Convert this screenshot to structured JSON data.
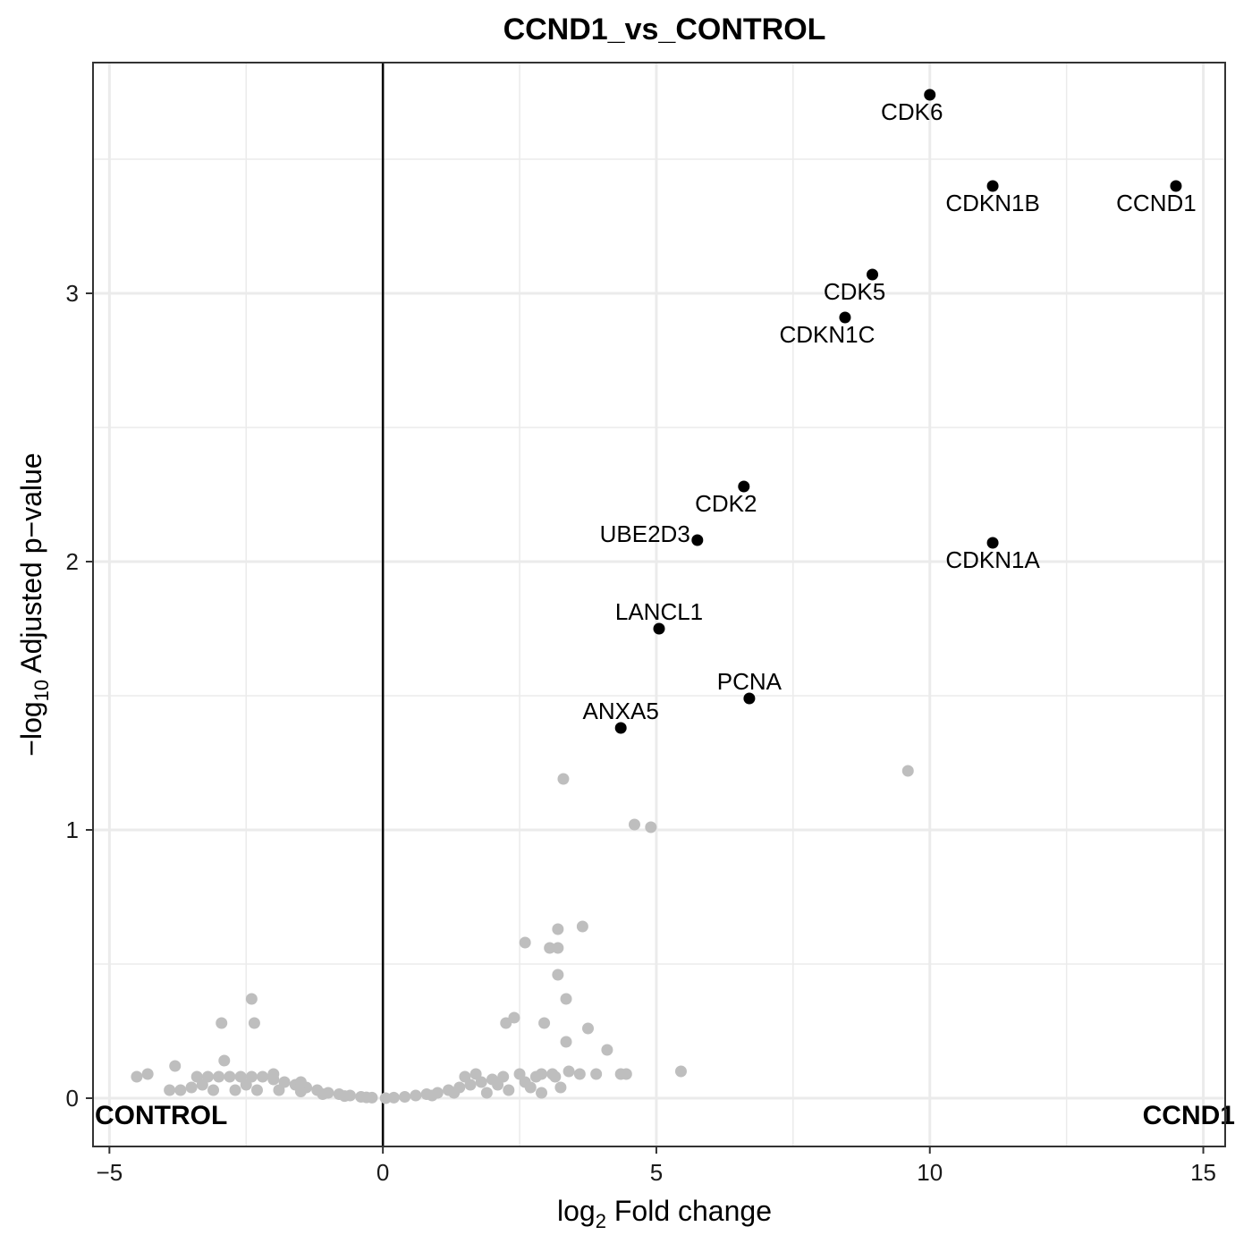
{
  "chart_data": {
    "type": "scatter",
    "title": "CCND1_vs_CONTROL",
    "xlabel": "log2 Fold change",
    "xlabel_parts": {
      "prefix": "log",
      "sub": "2",
      "suffix": " Fold change"
    },
    "ylabel": "−log10 Adjusted p−value",
    "ylabel_parts": {
      "prefix": "−log",
      "sub": "10",
      "suffix": " Adjusted p−value"
    },
    "xlim": [
      -5.3,
      15.4
    ],
    "ylim": [
      -0.18,
      3.86
    ],
    "x_ticks": [
      -5,
      0,
      5,
      10,
      15
    ],
    "x_tick_labels": [
      "−5",
      "0",
      "5",
      "10",
      "15"
    ],
    "y_ticks": [
      0,
      1,
      2,
      3
    ],
    "y_tick_labels": [
      "0",
      "1",
      "2",
      "3"
    ],
    "x_minor_ticks": [
      -2.5,
      2.5,
      7.5,
      12.5
    ],
    "y_minor_ticks": [
      0.5,
      1.5,
      2.5,
      3.5
    ],
    "grid": true,
    "vline_x": 0,
    "corner_labels": {
      "left": "CONTROL",
      "right": "CCND1"
    },
    "colors": {
      "significant": "#000000",
      "nonsignificant": "#bebebe",
      "grid": "#ebebeb",
      "panel_border": "#333333"
    },
    "significant_points": [
      {
        "gene": "CDK6",
        "x": 10.0,
        "y": 3.74
      },
      {
        "gene": "CDKN1B",
        "x": 11.15,
        "y": 3.4
      },
      {
        "gene": "CCND1",
        "x": 14.5,
        "y": 3.4
      },
      {
        "gene": "CDK5",
        "x": 8.95,
        "y": 3.07
      },
      {
        "gene": "CDKN1C",
        "x": 8.45,
        "y": 2.91
      },
      {
        "gene": "CDK2",
        "x": 6.6,
        "y": 2.28
      },
      {
        "gene": "UBE2D3",
        "x": 5.75,
        "y": 2.08
      },
      {
        "gene": "CDKN1A",
        "x": 11.15,
        "y": 2.07
      },
      {
        "gene": "LANCL1",
        "x": 5.05,
        "y": 1.75
      },
      {
        "gene": "PCNA",
        "x": 6.7,
        "y": 1.49
      },
      {
        "gene": "ANXA5",
        "x": 4.35,
        "y": 1.38
      }
    ],
    "background_points": [
      {
        "x": 3.3,
        "y": 1.19
      },
      {
        "x": 9.6,
        "y": 1.22
      },
      {
        "x": 4.6,
        "y": 1.02
      },
      {
        "x": 4.9,
        "y": 1.01
      },
      {
        "x": 3.2,
        "y": 0.63
      },
      {
        "x": 3.65,
        "y": 0.64
      },
      {
        "x": 2.6,
        "y": 0.58
      },
      {
        "x": 3.05,
        "y": 0.56
      },
      {
        "x": 3.2,
        "y": 0.56
      },
      {
        "x": 3.2,
        "y": 0.46
      },
      {
        "x": 3.35,
        "y": 0.37
      },
      {
        "x": 2.4,
        "y": 0.3
      },
      {
        "x": 2.25,
        "y": 0.28
      },
      {
        "x": 2.95,
        "y": 0.28
      },
      {
        "x": 3.75,
        "y": 0.26
      },
      {
        "x": 3.35,
        "y": 0.21
      },
      {
        "x": 4.1,
        "y": 0.18
      },
      {
        "x": -2.4,
        "y": 0.37
      },
      {
        "x": -2.35,
        "y": 0.28
      },
      {
        "x": -2.95,
        "y": 0.28
      },
      {
        "x": -2.9,
        "y": 0.14
      },
      {
        "x": -3.8,
        "y": 0.12
      },
      {
        "x": -4.3,
        "y": 0.09
      },
      {
        "x": -4.5,
        "y": 0.08
      },
      {
        "x": 5.45,
        "y": 0.1
      },
      {
        "x": 4.35,
        "y": 0.09
      },
      {
        "x": 4.45,
        "y": 0.09
      },
      {
        "x": 3.4,
        "y": 0.1
      },
      {
        "x": 3.6,
        "y": 0.09
      },
      {
        "x": 3.9,
        "y": 0.09
      },
      {
        "x": 3.15,
        "y": 0.08
      },
      {
        "x": 3.25,
        "y": 0.04
      },
      {
        "x": 2.8,
        "y": 0.08
      },
      {
        "x": 2.7,
        "y": 0.04
      },
      {
        "x": 2.5,
        "y": 0.09
      },
      {
        "x": 2.2,
        "y": 0.08
      },
      {
        "x": 2.0,
        "y": 0.07
      },
      {
        "x": 1.8,
        "y": 0.06
      },
      {
        "x": 1.6,
        "y": 0.05
      },
      {
        "x": 1.4,
        "y": 0.04
      },
      {
        "x": 1.2,
        "y": 0.03
      },
      {
        "x": 1.0,
        "y": 0.02
      },
      {
        "x": 0.8,
        "y": 0.015
      },
      {
        "x": 0.6,
        "y": 0.01
      },
      {
        "x": 0.4,
        "y": 0.005
      },
      {
        "x": 0.2,
        "y": 0.002
      },
      {
        "x": 0.05,
        "y": 0.0
      },
      {
        "x": 1.5,
        "y": 0.08
      },
      {
        "x": 2.3,
        "y": 0.03
      },
      {
        "x": 2.9,
        "y": 0.02
      },
      {
        "x": 1.9,
        "y": 0.02
      },
      {
        "x": 2.6,
        "y": 0.06
      },
      {
        "x": -0.2,
        "y": 0.002
      },
      {
        "x": -0.4,
        "y": 0.005
      },
      {
        "x": -0.6,
        "y": 0.01
      },
      {
        "x": -0.8,
        "y": 0.015
      },
      {
        "x": -1.0,
        "y": 0.02
      },
      {
        "x": -1.2,
        "y": 0.03
      },
      {
        "x": -1.4,
        "y": 0.04
      },
      {
        "x": -1.6,
        "y": 0.05
      },
      {
        "x": -1.8,
        "y": 0.06
      },
      {
        "x": -2.0,
        "y": 0.07
      },
      {
        "x": -2.2,
        "y": 0.08
      },
      {
        "x": -2.4,
        "y": 0.08
      },
      {
        "x": -2.6,
        "y": 0.08
      },
      {
        "x": -2.8,
        "y": 0.08
      },
      {
        "x": -3.0,
        "y": 0.08
      },
      {
        "x": -3.2,
        "y": 0.08
      },
      {
        "x": -3.4,
        "y": 0.08
      },
      {
        "x": -3.7,
        "y": 0.03
      },
      {
        "x": -3.9,
        "y": 0.03
      },
      {
        "x": -3.5,
        "y": 0.04
      },
      {
        "x": -3.1,
        "y": 0.03
      },
      {
        "x": -2.7,
        "y": 0.03
      },
      {
        "x": -2.3,
        "y": 0.03
      },
      {
        "x": -1.9,
        "y": 0.03
      },
      {
        "x": -1.5,
        "y": 0.025
      },
      {
        "x": -1.1,
        "y": 0.015
      },
      {
        "x": -0.7,
        "y": 0.008
      },
      {
        "x": -0.3,
        "y": 0.003
      },
      {
        "x": -2.0,
        "y": 0.09
      },
      {
        "x": -1.5,
        "y": 0.06
      },
      {
        "x": -3.3,
        "y": 0.05
      },
      {
        "x": -2.5,
        "y": 0.05
      },
      {
        "x": 1.7,
        "y": 0.09
      },
      {
        "x": 2.1,
        "y": 0.05
      },
      {
        "x": 2.9,
        "y": 0.09
      },
      {
        "x": 3.1,
        "y": 0.09
      },
      {
        "x": 1.3,
        "y": 0.02
      },
      {
        "x": 0.9,
        "y": 0.01
      }
    ]
  }
}
